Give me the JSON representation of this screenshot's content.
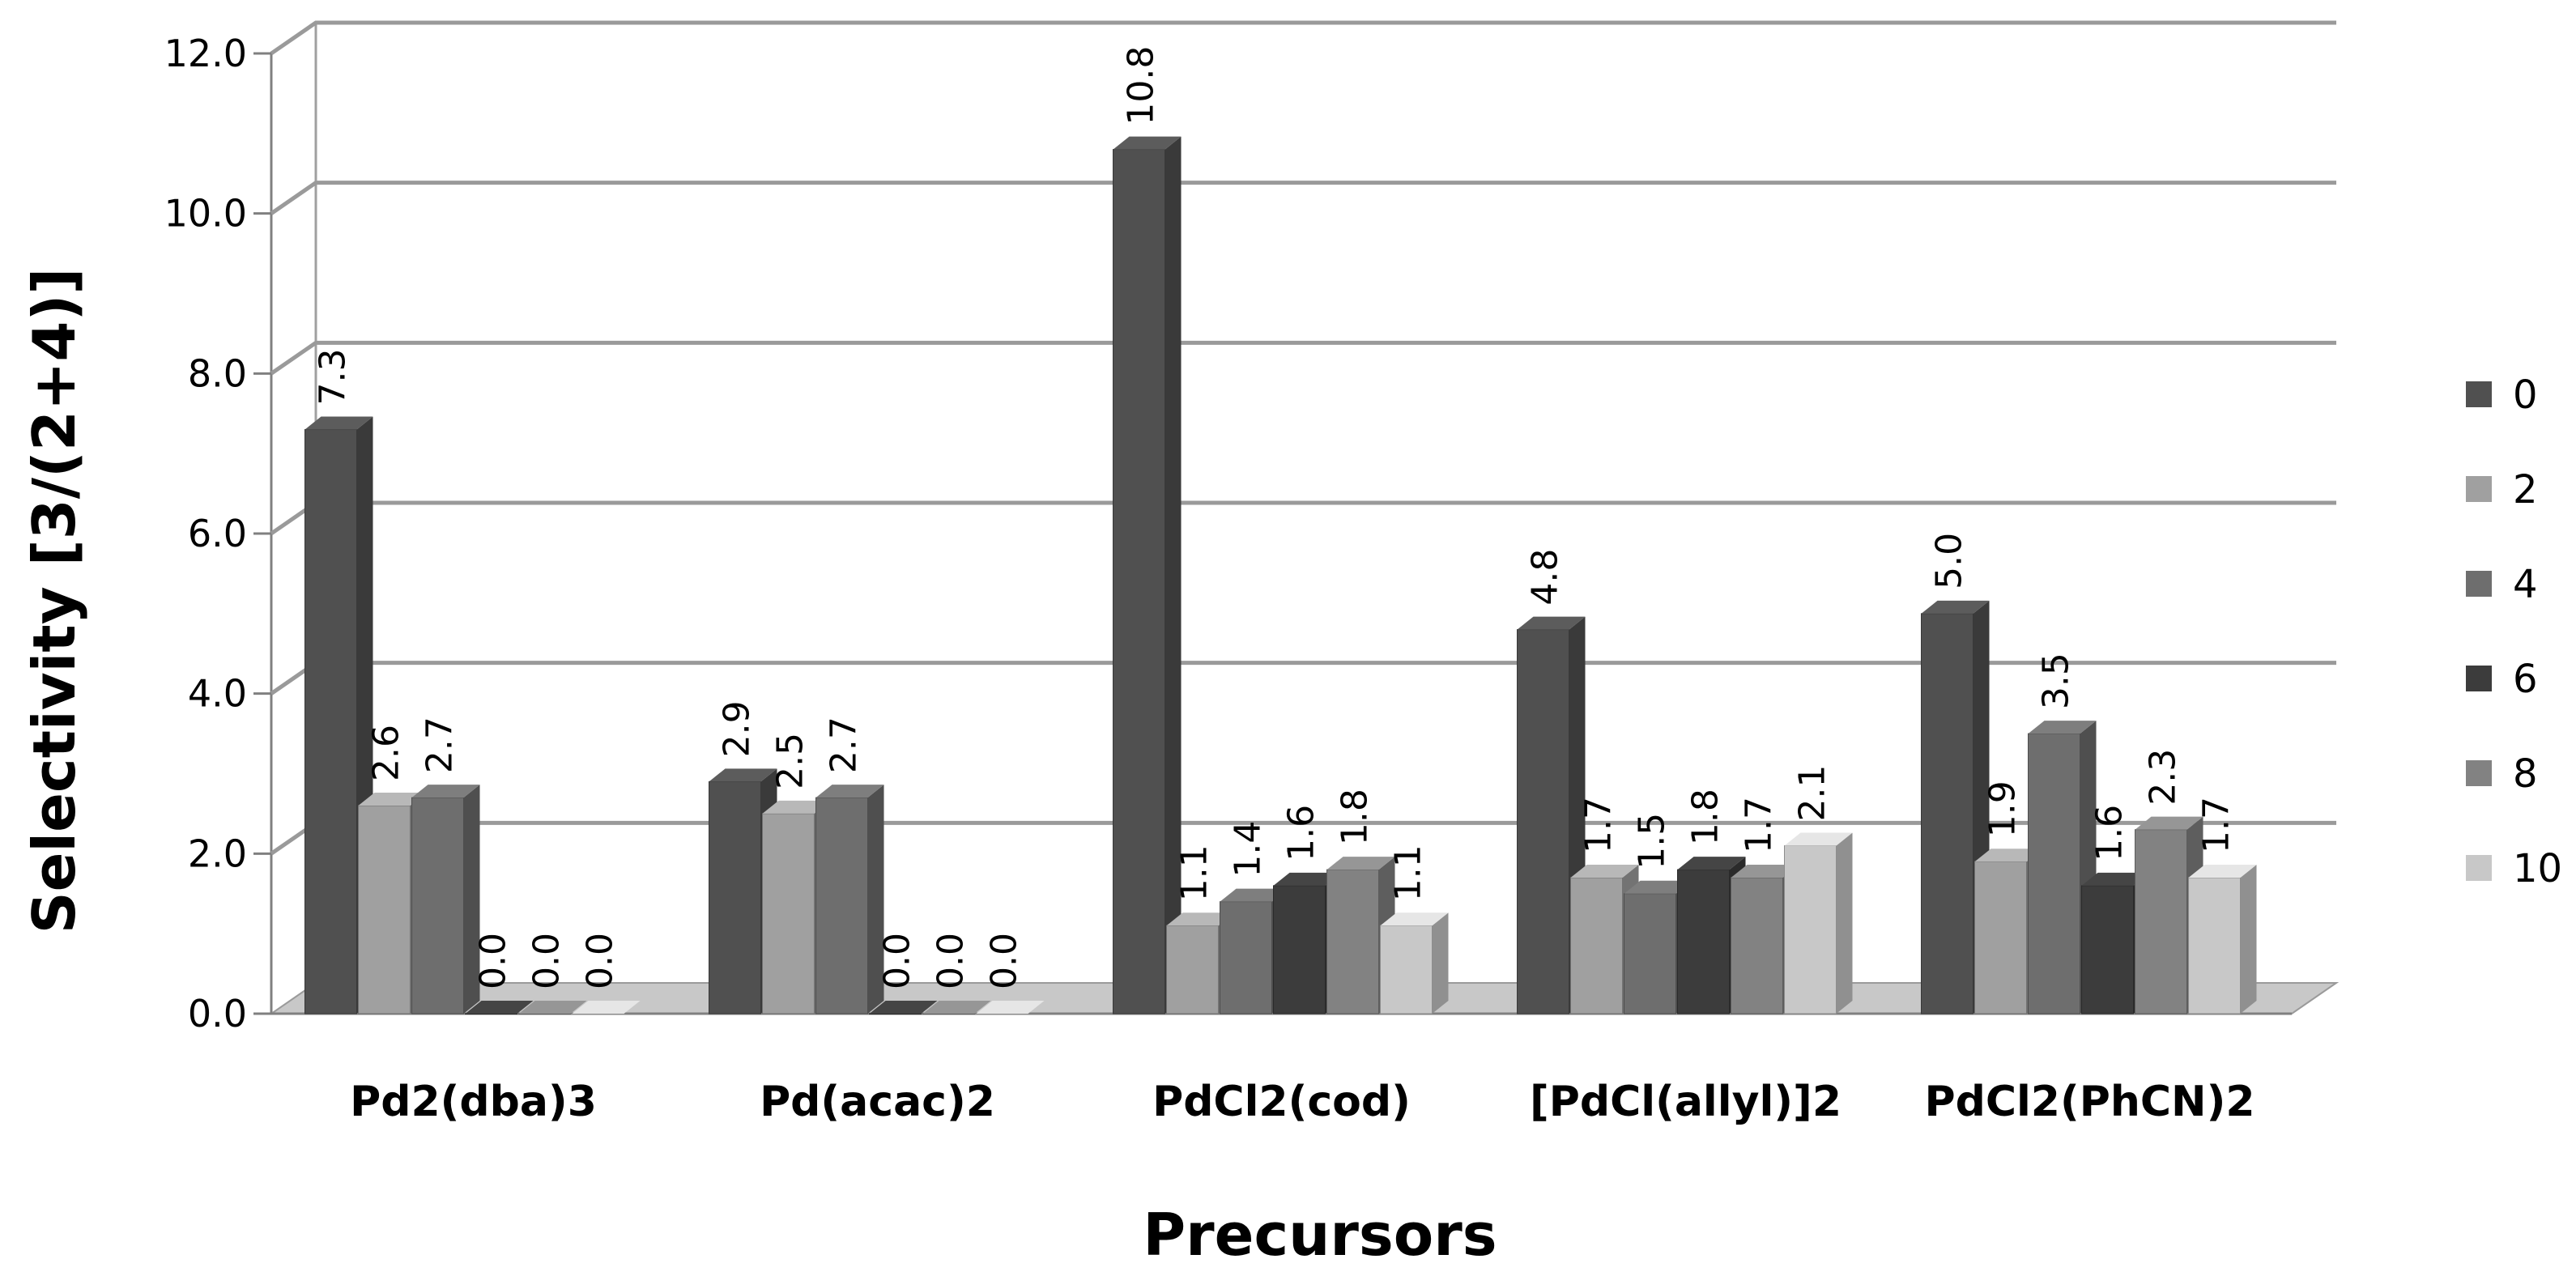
{
  "chart_data": {
    "type": "bar",
    "categories": [
      "Pd2(dba)3",
      "Pd(acac)2",
      "PdCl2(cod)",
      "[PdCl(allyl)]2",
      "PdCl2(PhCN)2"
    ],
    "series": [
      {
        "name": "0",
        "values": [
          7.3,
          2.9,
          10.8,
          4.8,
          5.0
        ],
        "labels": [
          "7.3",
          "2.9",
          "10.8",
          "4.8",
          "5.0"
        ],
        "color": "#505050"
      },
      {
        "name": "2",
        "values": [
          2.6,
          2.5,
          1.1,
          1.7,
          1.9
        ],
        "labels": [
          "2.6",
          "2.5",
          "1.1",
          "1.7",
          "1.9"
        ],
        "color": "#a0a0a0"
      },
      {
        "name": "4",
        "values": [
          2.7,
          2.7,
          1.4,
          1.5,
          3.5
        ],
        "labels": [
          "2.7",
          "2.7",
          "1.4",
          "1.5",
          "3.5"
        ],
        "color": "#6e6e6e"
      },
      {
        "name": "6",
        "values": [
          0.0,
          0.0,
          1.6,
          1.8,
          1.6
        ],
        "labels": [
          "0.0",
          "0.0",
          "1.6",
          "1.8",
          "1.6"
        ],
        "color": "#3c3c3c"
      },
      {
        "name": "8",
        "values": [
          0.0,
          0.0,
          1.8,
          1.7,
          2.3
        ],
        "labels": [
          "0.0",
          "0.0",
          "1.8",
          "1.7",
          "2.3"
        ],
        "color": "#828282"
      },
      {
        "name": "10",
        "values": [
          0.0,
          0.0,
          1.1,
          2.1,
          1.7
        ],
        "labels": [
          "0.0",
          "0.0",
          "1.1",
          "2.1",
          "1.7"
        ],
        "color": "#c8c8c8"
      }
    ],
    "xlabel": "Precursors",
    "ylabel": "Selectivity [3/(2+4)]",
    "ylim": [
      0,
      12
    ],
    "yticks": [
      "0.0",
      "2.0",
      "4.0",
      "6.0",
      "8.0",
      "10.0",
      "12.0"
    ],
    "grid": true,
    "legend_position": "right"
  }
}
